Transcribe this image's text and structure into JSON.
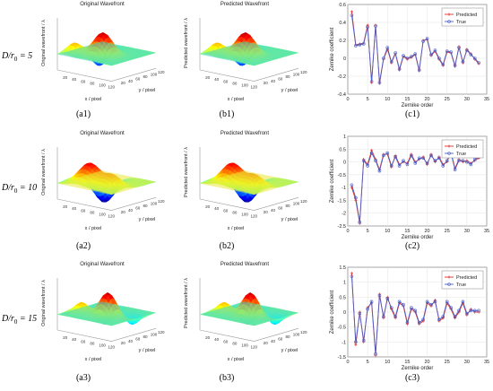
{
  "rows": [
    {
      "row_label_main": "D/r",
      "row_label_sub": "0",
      "row_label_value": "= 5",
      "surface_titles": [
        "Original Wavefront",
        "Predicted Wavefront"
      ],
      "zlabels": [
        "Original wavefront / λ",
        "Predicted wavefront / λ"
      ],
      "subfig": [
        "(a1)",
        "(b1)",
        "(c1)"
      ]
    },
    {
      "row_label_main": "D/r",
      "row_label_sub": "0",
      "row_label_value": "= 10",
      "surface_titles": [
        "Original Wavefront",
        "Predicted Wavefront"
      ],
      "zlabels": [
        "Original wavefront / λ",
        "Predicted wavefront / λ"
      ],
      "subfig": [
        "(a2)",
        "(b2)",
        "(c2)"
      ]
    },
    {
      "row_label_main": "D/r",
      "row_label_sub": "0",
      "row_label_value": "= 15",
      "surface_titles": [
        "Original Wavefront",
        "Predicted Wavefront"
      ],
      "zlabels": [
        "Original wavefront / λ",
        "Predicted wavefront / λ"
      ],
      "subfig": [
        "(a3)",
        "(b3)",
        "(c3)"
      ]
    }
  ],
  "surface_axes": {
    "xlabel": "x / pixel",
    "ylabel": "y / pixel",
    "xticks": [
      "20",
      "40",
      "60",
      "80",
      "100",
      "120"
    ],
    "yticks": [
      "20",
      "40",
      "60",
      "80",
      "100",
      "120"
    ]
  },
  "colors": {
    "predicted": "#e0302c",
    "true": "#4b5fc8"
  },
  "chart_data": [
    {
      "type": "line",
      "xlabel": "Zernike order",
      "ylabel": "Zernike coefficient",
      "xlim": [
        0,
        35
      ],
      "ylim": [
        -0.4,
        0.6
      ],
      "xticks": [
        0,
        5,
        10,
        15,
        20,
        25,
        30,
        35
      ],
      "yticks": [
        -0.4,
        -0.2,
        0,
        0.2,
        0.4,
        0.6
      ],
      "legend": "top-right",
      "x": [
        1,
        2,
        3,
        4,
        5,
        6,
        7,
        8,
        9,
        10,
        11,
        12,
        13,
        14,
        15,
        16,
        17,
        18,
        19,
        20,
        21,
        22,
        23,
        24,
        25,
        26,
        27,
        28,
        29,
        30,
        31,
        32,
        33
      ],
      "series": [
        {
          "name": "Predicted",
          "values": [
            0.52,
            0.15,
            0.16,
            0.17,
            0.37,
            -0.27,
            0.37,
            -0.28,
            -0.01,
            0.1,
            -0.05,
            0.05,
            -0.13,
            0.02,
            -0.01,
            0.01,
            0.04,
            -0.14,
            0.2,
            0.21,
            0.03,
            0.08,
            -0.01,
            -0.08,
            0.07,
            0.06,
            -0.09,
            0.13,
            -0.05,
            0.1,
            0.05,
            -0.01,
            -0.06
          ]
        },
        {
          "name": "True",
          "values": [
            0.48,
            0.14,
            0.15,
            0.16,
            0.35,
            -0.26,
            0.36,
            -0.27,
            0.0,
            0.12,
            -0.04,
            0.06,
            -0.12,
            0.03,
            0.0,
            0.02,
            0.05,
            -0.13,
            0.19,
            0.22,
            0.04,
            0.09,
            0.0,
            -0.07,
            0.08,
            0.07,
            -0.08,
            0.12,
            -0.04,
            0.09,
            0.04,
            0.0,
            -0.05
          ]
        }
      ]
    },
    {
      "type": "line",
      "xlabel": "Zernike order",
      "ylabel": "Zernike coefficient",
      "xlim": [
        0,
        35
      ],
      "ylim": [
        -2.5,
        1
      ],
      "xticks": [
        0,
        5,
        10,
        15,
        20,
        25,
        30,
        35
      ],
      "yticks": [
        -2.5,
        -2,
        -1.5,
        -1,
        -0.5,
        0,
        0.5,
        1
      ],
      "legend": "top-right",
      "x": [
        1,
        2,
        3,
        4,
        5,
        6,
        7,
        8,
        9,
        10,
        11,
        12,
        13,
        14,
        15,
        16,
        17,
        18,
        19,
        20,
        21,
        22,
        23,
        24,
        25,
        26,
        27,
        28,
        29,
        30,
        31,
        32,
        33
      ],
      "series": [
        {
          "name": "Predicted",
          "values": [
            -1.0,
            -1.5,
            -2.4,
            0.1,
            -0.1,
            0.45,
            0.1,
            -0.3,
            0.3,
            0.3,
            -0.2,
            0.25,
            -0.1,
            0.0,
            -0.05,
            0.3,
            0.0,
            0.1,
            0.2,
            -0.1,
            0.3,
            0.0,
            0.2,
            -0.1,
            0.0,
            0.4,
            -0.25,
            0.1,
            0.0,
            0.05,
            -0.05,
            0.05,
            0.15
          ]
        },
        {
          "name": "True",
          "values": [
            -0.9,
            -1.4,
            -2.35,
            0.05,
            -0.15,
            0.35,
            0.05,
            -0.35,
            0.25,
            0.35,
            -0.15,
            0.2,
            -0.15,
            0.05,
            -0.1,
            0.25,
            -0.05,
            0.15,
            0.15,
            -0.05,
            0.25,
            0.05,
            0.15,
            -0.15,
            0.05,
            0.35,
            -0.3,
            0.05,
            0.05,
            0.0,
            -0.1,
            0.1,
            0.2
          ]
        }
      ]
    },
    {
      "type": "line",
      "xlabel": "Zernike order",
      "ylabel": "Zernike coefficient",
      "xlim": [
        0,
        35
      ],
      "ylim": [
        -1.5,
        1.5
      ],
      "xticks": [
        0,
        5,
        10,
        15,
        20,
        25,
        30,
        35
      ],
      "yticks": [
        -1.5,
        -1,
        -0.5,
        0,
        0.5,
        1,
        1.5
      ],
      "legend": "top-right",
      "x": [
        1,
        2,
        3,
        4,
        5,
        6,
        7,
        8,
        9,
        10,
        11,
        12,
        13,
        14,
        15,
        16,
        17,
        18,
        19,
        20,
        21,
        22,
        23,
        24,
        25,
        26,
        27,
        28,
        29,
        30,
        31,
        32,
        33
      ],
      "series": [
        {
          "name": "Predicted",
          "values": [
            1.3,
            -1.1,
            0.0,
            -1.0,
            0.15,
            0.3,
            -1.45,
            0.6,
            -0.2,
            0.5,
            0.1,
            -0.2,
            0.3,
            0.2,
            -0.4,
            0.1,
            0.0,
            -0.4,
            -0.3,
            0.3,
            0.2,
            0.4,
            -0.3,
            -0.2,
            0.3,
            0.1,
            -0.2,
            0.0,
            0.3,
            -0.1,
            0.1,
            0.0,
            0.0
          ]
        },
        {
          "name": "True",
          "values": [
            1.2,
            -1.0,
            -0.05,
            -0.95,
            0.1,
            0.35,
            -1.4,
            0.55,
            -0.15,
            0.45,
            0.15,
            -0.15,
            0.35,
            0.25,
            -0.35,
            0.15,
            0.05,
            -0.35,
            -0.25,
            0.35,
            0.25,
            0.35,
            -0.25,
            -0.15,
            0.35,
            0.15,
            -0.15,
            0.05,
            0.35,
            -0.05,
            0.05,
            0.05,
            0.05
          ]
        }
      ]
    }
  ]
}
